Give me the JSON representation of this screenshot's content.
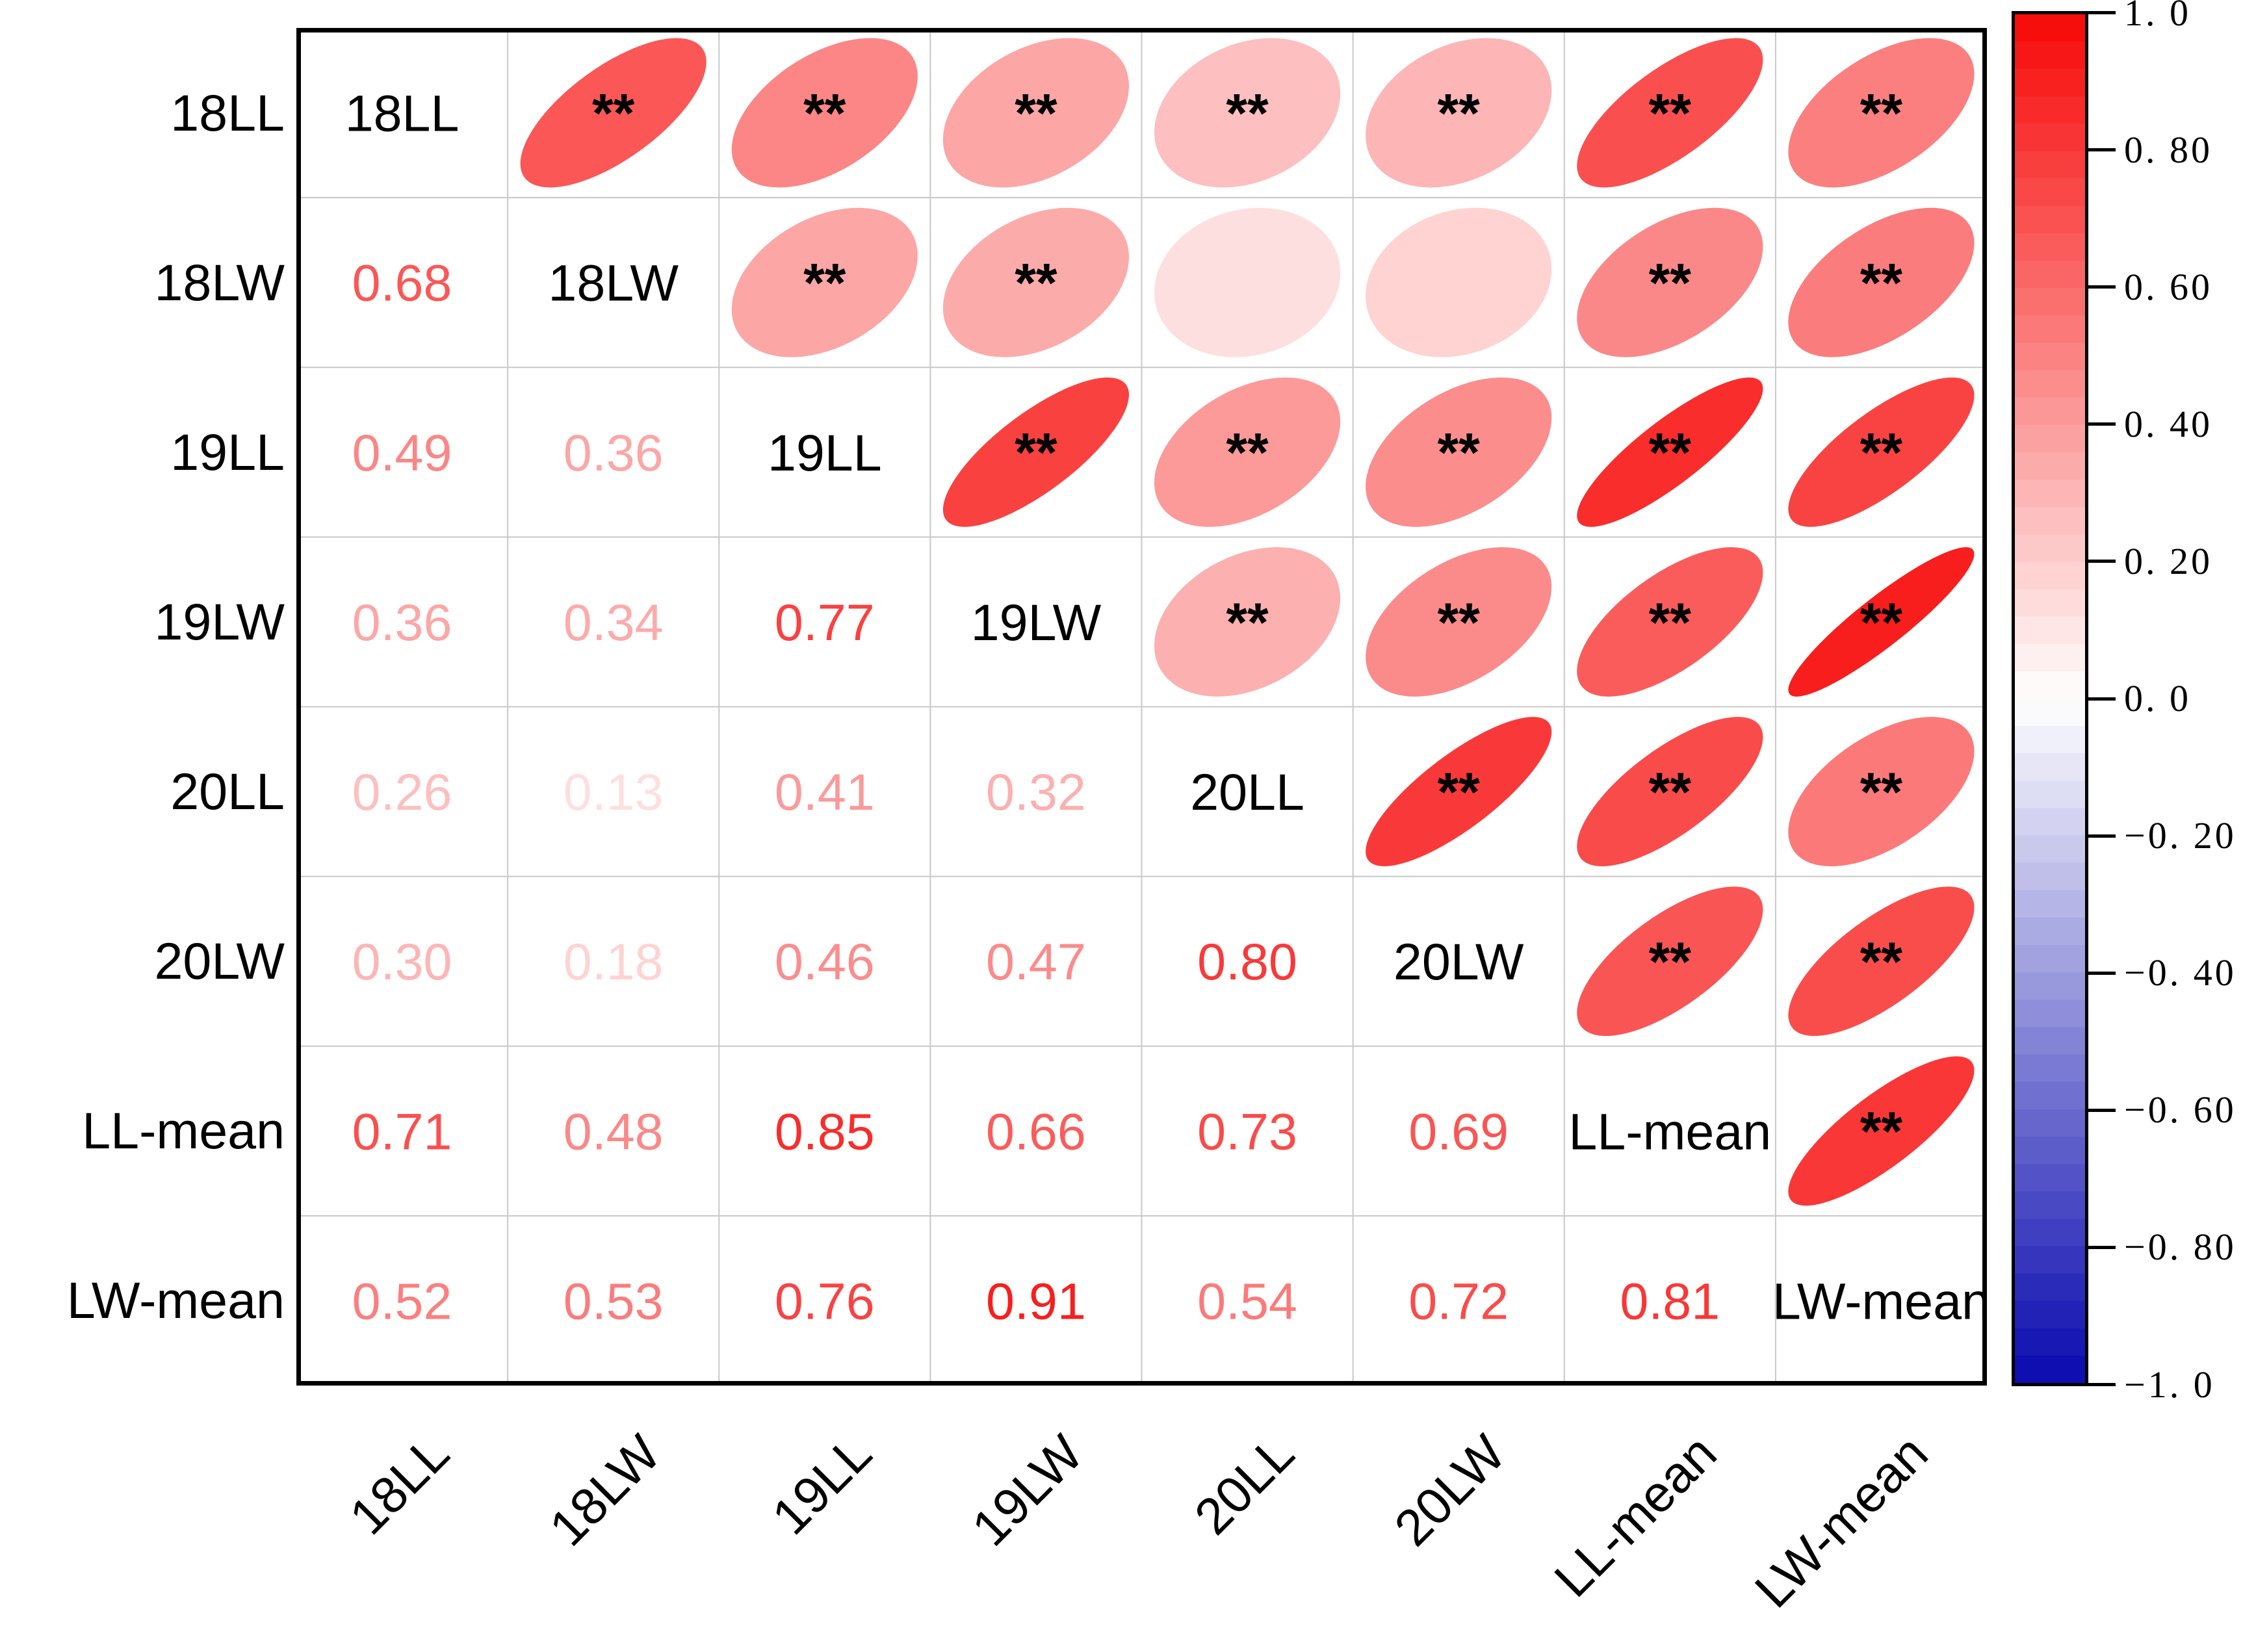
{
  "chart_data": {
    "type": "heatmap",
    "subtype": "correlation-ellipse-matrix",
    "title": "",
    "variables": [
      "18LL",
      "18LW",
      "19LL",
      "19LW",
      "20LL",
      "20LW",
      "LL-mean",
      "LW-mean"
    ],
    "lower_triangle_values": [
      [],
      [
        0.68
      ],
      [
        0.49,
        0.36
      ],
      [
        0.36,
        0.34,
        0.77
      ],
      [
        0.26,
        0.13,
        0.41,
        0.32
      ],
      [
        0.3,
        0.18,
        0.46,
        0.47,
        0.8
      ],
      [
        0.71,
        0.48,
        0.85,
        0.66,
        0.73,
        0.69
      ],
      [
        0.52,
        0.53,
        0.76,
        0.91,
        0.54,
        0.72,
        0.81
      ]
    ],
    "upper_triangle_glyph": "ellipse",
    "significance_marker": "**",
    "not_significant_pairs": [
      [
        "18LW",
        "20LL"
      ],
      [
        "18LW",
        "20LW"
      ]
    ],
    "value_format": "2dp",
    "grid": true,
    "grid_color": "#c8c8c8",
    "frame_color": "#000000",
    "legend_position": "right",
    "colorbar": {
      "tick_labels": [
        "1. 0",
        "0. 80",
        "0. 60",
        "0. 40",
        "0. 20",
        "0. 0",
        "−0. 20",
        "−0. 40",
        "−0. 60",
        "−0. 80",
        "−1. 0"
      ],
      "tick_values": [
        1,
        0.8,
        0.6,
        0.4,
        0.2,
        0,
        -0.2,
        -0.4,
        -0.6,
        -0.8,
        -1
      ],
      "range": [
        -1,
        1
      ],
      "max_color": "#f70807",
      "mid_color": "#ffffff",
      "min_color": "#0909af",
      "bands": 50
    }
  }
}
